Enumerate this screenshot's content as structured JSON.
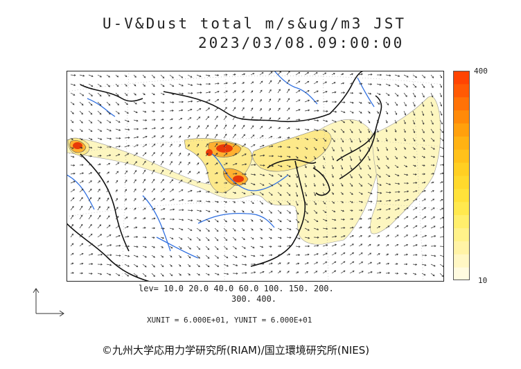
{
  "title": {
    "line1": "U-V&Dust total m/s&ug/m3 JST",
    "line2": "2023/03/08.09:00:00"
  },
  "colorbar": {
    "max_label": "400",
    "min_label": "10",
    "levels": [
      10,
      20,
      40,
      60,
      100,
      150,
      200,
      300,
      400
    ],
    "colors": [
      "#fffbe0",
      "#fff7c4",
      "#fff3a6",
      "#fff28a",
      "#ffef6c",
      "#ffe94e",
      "#ffe23a",
      "#ffd92c",
      "#ffcf22",
      "#ffc11a",
      "#ffb212",
      "#ffa00c",
      "#ff8a08",
      "#ff7206",
      "#ff5a04",
      "#ff4402"
    ]
  },
  "legend": {
    "levels_line1": "lev= 10.0 20.0 40.0 60.0 100. 150. 200.",
    "levels_line2": "300. 400.",
    "units": "XUNIT = 6.000E+01, YUNIT = 6.000E+01"
  },
  "map_colors": {
    "coast": "#111111",
    "river": "#2f6fe0",
    "dust_low": "#fdf6c0",
    "dust_mid": "#fde060",
    "dust_high": "#ff8c1a",
    "dust_peak": "#e02a00",
    "vector": "#333333"
  },
  "copyright": "©九州大学応用力学研究所(RIAM)/国立環境研究所(NIES)"
}
